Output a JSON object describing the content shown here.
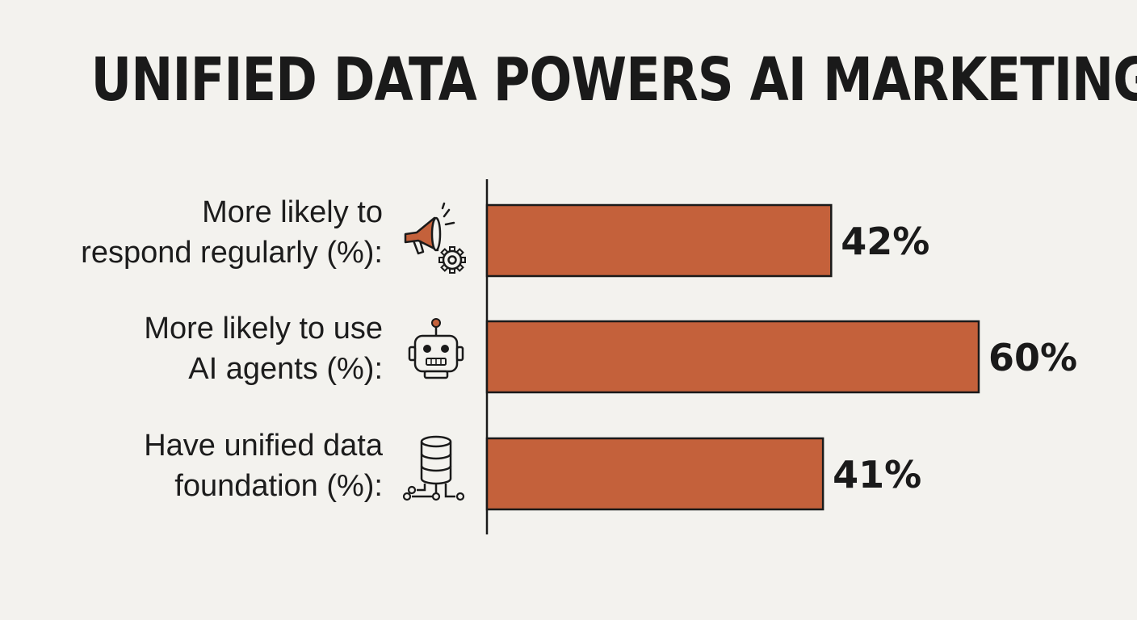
{
  "title": "UNIFIED DATA POWERS AI MARKETING",
  "colors": {
    "bar": "#c4613b",
    "bar_outline": "#1a1a1a",
    "background": "#f3f2ee",
    "icon_accent": "#c4613b"
  },
  "chart_data": {
    "type": "bar",
    "orientation": "horizontal",
    "title": "UNIFIED DATA POWERS AI MARKETING",
    "categories": [
      "More likely to respond regularly (%):",
      "More likely to use AI agents (%):",
      "Have unified data foundation (%):"
    ],
    "category_lines": [
      [
        "More likely to",
        "respond regularly (%):"
      ],
      [
        "More likely to use",
        "AI agents (%):"
      ],
      [
        "Have unified data",
        "foundation (%):"
      ]
    ],
    "values": [
      42,
      60,
      41
    ],
    "value_labels": [
      "42%",
      "60%",
      "41%"
    ],
    "icons": [
      "megaphone-gear-icon",
      "robot-icon",
      "database-network-icon"
    ],
    "xlim": [
      0,
      60
    ],
    "grid": false,
    "legend": "none"
  }
}
